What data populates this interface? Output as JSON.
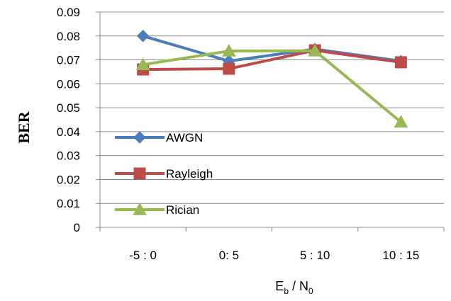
{
  "chart_data": {
    "type": "line",
    "categories": [
      "-5 : 0",
      "0: 5",
      "5 : 10",
      "10 : 15"
    ],
    "series": [
      {
        "name": "AWGN",
        "values": [
          0.08,
          0.0695,
          0.0745,
          0.0695
        ],
        "color": "#4A7EBB",
        "marker": "diamond"
      },
      {
        "name": "Rayleigh",
        "values": [
          0.066,
          0.0663,
          0.074,
          0.069
        ],
        "color": "#BE4B48",
        "marker": "square"
      },
      {
        "name": "Rician",
        "values": [
          0.068,
          0.0737,
          0.0738,
          0.044
        ],
        "color": "#98B954",
        "marker": "triangle"
      }
    ],
    "ylim": [
      0,
      0.09
    ],
    "yticks": [
      "0",
      "0.01",
      "0.02",
      "0.03",
      "0.04",
      "0.05",
      "0.06",
      "0.07",
      "0.08",
      "0.09"
    ],
    "ytick_values": [
      0,
      0.01,
      0.02,
      0.03,
      0.04,
      0.05,
      0.06,
      0.07,
      0.08,
      0.09
    ],
    "ylabel": "BER",
    "xlabel": {
      "main1": "E",
      "sub1": "b",
      "sep": " / N",
      "sub2": "0"
    },
    "grid": "horizontal",
    "legend_position": "left-inside"
  }
}
